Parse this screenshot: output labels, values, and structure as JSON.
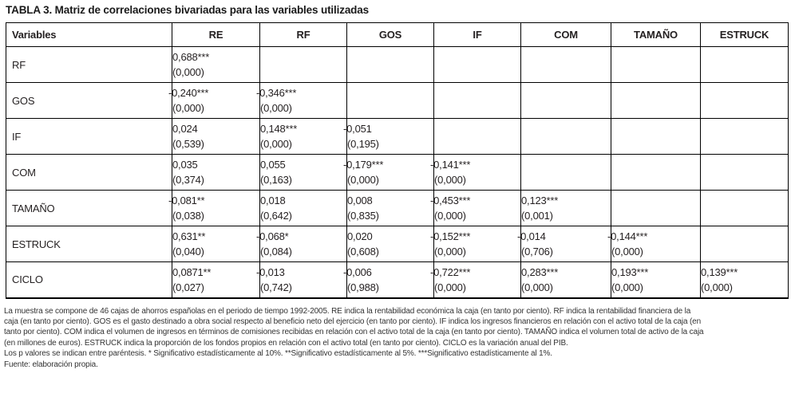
{
  "title": "TABLA 3. Matriz de correlaciones bivariadas para las variables utilizadas",
  "table": {
    "columns": [
      "Variables",
      "RE",
      "RF",
      "GOS",
      "IF",
      "COM",
      "TAMAÑO",
      "ESTRUCK"
    ],
    "rows": [
      {
        "label": "RF",
        "cells": [
          {
            "v": "0,688***",
            "p": "(0,000)"
          },
          null,
          null,
          null,
          null,
          null,
          null
        ]
      },
      {
        "label": "GOS",
        "cells": [
          {
            "v": "-0,240***",
            "p": "(0,000)"
          },
          {
            "v": "-0,346***",
            "p": "(0,000)"
          },
          null,
          null,
          null,
          null,
          null
        ]
      },
      {
        "label": "IF",
        "cells": [
          {
            "v": "0,024",
            "p": "(0,539)"
          },
          {
            "v": "0,148***",
            "p": "(0,000)"
          },
          {
            "v": "-0,051",
            "p": "(0,195)"
          },
          null,
          null,
          null,
          null
        ]
      },
      {
        "label": "COM",
        "cells": [
          {
            "v": "0,035",
            "p": "(0,374)"
          },
          {
            "v": "0,055",
            "p": "(0,163)"
          },
          {
            "v": "-0,179***",
            "p": "(0,000)"
          },
          {
            "v": "-0,141***",
            "p": "(0,000)"
          },
          null,
          null,
          null
        ]
      },
      {
        "label": "TAMAÑO",
        "cells": [
          {
            "v": "-0,081**",
            "p": "(0,038)"
          },
          {
            "v": "0,018",
            "p": "(0,642)"
          },
          {
            "v": "0,008",
            "p": "(0,835)"
          },
          {
            "v": "-0,453***",
            "p": "(0,000)"
          },
          {
            "v": "0,123***",
            "p": "(0,001)"
          },
          null,
          null
        ]
      },
      {
        "label": "ESTRUCK",
        "cells": [
          {
            "v": "0,631**",
            "p": "(0,040)"
          },
          {
            "v": "-0,068*",
            "p": "(0,084)"
          },
          {
            "v": "0,020",
            "p": "(0,608)"
          },
          {
            "v": "-0,152***",
            "p": "(0,000)"
          },
          {
            "v": "-0,014",
            "p": "(0,706)"
          },
          {
            "v": "-0,144***",
            "p": "(0,000)"
          },
          null
        ]
      },
      {
        "label": "CICLO",
        "cells": [
          {
            "v": "0,0871**",
            "p": "(0,027)"
          },
          {
            "v": "-0,013",
            "p": "(0,742)"
          },
          {
            "v": "-0,006",
            "p": "(0,988)"
          },
          {
            "v": "-0,722***",
            "p": "(0,000)"
          },
          {
            "v": "0,283***",
            "p": "(0,000)"
          },
          {
            "v": "0,193***",
            "p": "(0,000)"
          },
          {
            "v": "0,139***",
            "p": "(0,000)"
          }
        ]
      }
    ]
  },
  "notes": [
    "La muestra se compone de 46 cajas de ahorros españolas en el periodo de tiempo 1992-2005. RE indica la rentabilidad económica la caja (en tanto por ciento). RF indica la rentabilidad financiera de la",
    "caja (en tanto por ciento). GOS es el gasto destinado a obra social respecto al beneficio neto del ejercicio (en tanto por ciento). IF indica los ingresos financieros en relación con el activo total de la caja (en",
    "tanto por ciento). COM indica el volumen de ingresos en términos de comisiones recibidas en relación con el activo total de la caja (en tanto por ciento). TAMAÑO indica el volumen total de activo de la caja",
    "(en millones de euros). ESTRUCK indica la proporción de los fondos propios en relación con el activo total (en tanto por ciento). CICLO es la variación anual del PIB.",
    "Los p valores se indican entre paréntesis. * Significativo estadísticamente al 10%. **Significativo estadísticamente al 5%. ***Significativo estadísticamente al 1%.",
    "Fuente: elaboración propia."
  ],
  "colors": {
    "text": "#231f20",
    "border": "#000000",
    "background": "#ffffff"
  }
}
